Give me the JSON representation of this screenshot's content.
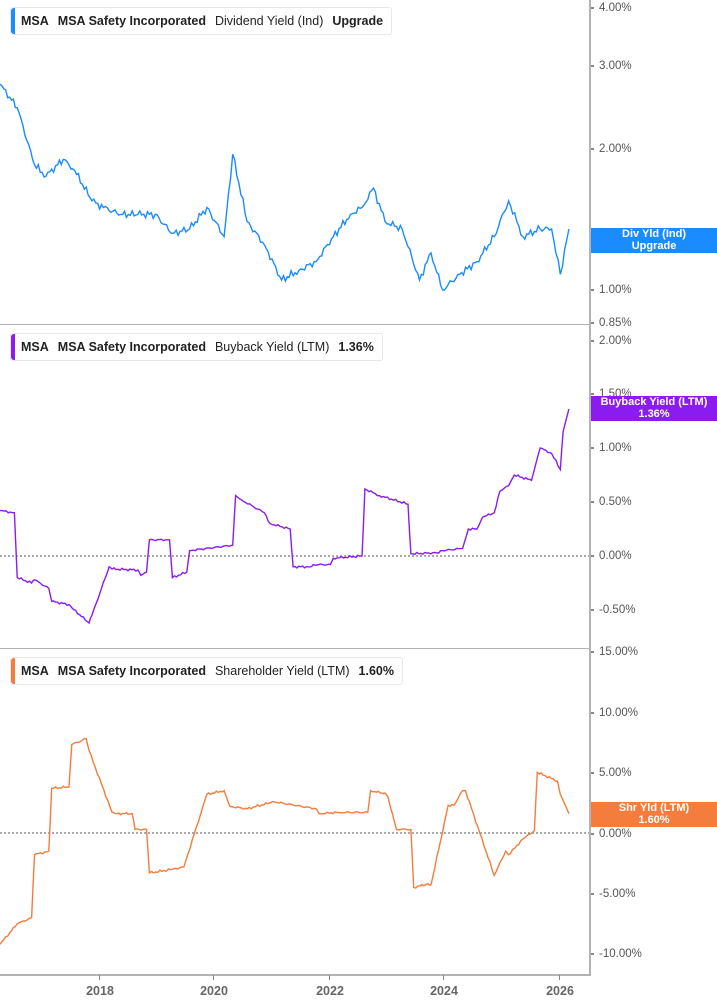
{
  "chart_data": [
    {
      "type": "line",
      "title": "MSA  MSA Safety Incorporated  Dividend Yield (Ind)",
      "legend": {
        "ticker": "MSA",
        "name": "MSA Safety Incorporated",
        "metric": "Dividend Yield (Ind)",
        "value": "Upgrade"
      },
      "color": "#1a8cff",
      "y_scale": "log",
      "ylim": [
        0.85,
        4.0
      ],
      "y_ticks": [
        "4.00%",
        "3.00%",
        "2.00%",
        "1.00%",
        "0.85%"
      ],
      "y_tick_values": [
        4.0,
        3.0,
        2.0,
        1.0,
        0.85
      ],
      "flag": {
        "line1": "Div Yld (Ind)",
        "line2": "Upgrade"
      },
      "x": [
        2016.3,
        2016.6,
        2016.9,
        2017.1,
        2017.4,
        2017.6,
        2017.9,
        2018.1,
        2018.4,
        2018.7,
        2019.0,
        2019.3,
        2019.6,
        2019.9,
        2020.2,
        2020.35,
        2020.6,
        2020.9,
        2021.2,
        2021.5,
        2021.8,
        2022.1,
        2022.4,
        2022.6,
        2022.8,
        2023.0,
        2023.3,
        2023.6,
        2023.8,
        2024.0,
        2024.3,
        2024.6,
        2024.9,
        2025.15,
        2025.4,
        2025.7,
        2025.9,
        2026.05,
        2026.2
      ],
      "values": [
        2.75,
        2.45,
        1.85,
        1.75,
        1.9,
        1.8,
        1.55,
        1.5,
        1.45,
        1.45,
        1.45,
        1.32,
        1.35,
        1.5,
        1.3,
        1.95,
        1.4,
        1.25,
        1.05,
        1.1,
        1.15,
        1.3,
        1.45,
        1.5,
        1.65,
        1.4,
        1.35,
        1.05,
        1.2,
        1.0,
        1.08,
        1.15,
        1.3,
        1.55,
        1.3,
        1.35,
        1.35,
        1.08,
        1.35
      ]
    },
    {
      "type": "line",
      "title": "MSA  MSA Safety Incorporated  Buyback Yield (LTM)",
      "legend": {
        "ticker": "MSA",
        "name": "MSA Safety Incorporated",
        "metric": "Buyback Yield (LTM)",
        "value": "1.36%"
      },
      "color": "#8a1cf0",
      "ylim": [
        -0.75,
        2.0
      ],
      "y_ticks": [
        "2.00%",
        "1.50%",
        "1.00%",
        "0.50%",
        "0.00%",
        "-0.50%"
      ],
      "y_tick_values": [
        2.0,
        1.5,
        1.0,
        0.5,
        0.0,
        -0.5
      ],
      "flag": {
        "line1": "Buyback Yield (LTM)",
        "line2": "1.36%"
      },
      "x": [
        2016.3,
        2016.55,
        2016.6,
        2016.85,
        2016.9,
        2017.15,
        2017.2,
        2017.5,
        2017.55,
        2017.85,
        2017.9,
        2018.2,
        2018.25,
        2018.7,
        2018.75,
        2018.85,
        2018.9,
        2019.25,
        2019.3,
        2019.55,
        2019.6,
        2020.35,
        2020.4,
        2020.5,
        2020.9,
        2021.0,
        2021.35,
        2021.4,
        2021.7,
        2021.75,
        2022.05,
        2022.1,
        2022.6,
        2022.65,
        2022.9,
        2023.4,
        2023.45,
        2023.9,
        2024.0,
        2024.35,
        2024.45,
        2024.6,
        2024.7,
        2024.9,
        2025.0,
        2025.15,
        2025.25,
        2025.55,
        2025.7,
        2025.9,
        2026.05,
        2026.1,
        2026.2
      ],
      "values": [
        0.42,
        0.4,
        -0.2,
        -0.25,
        -0.22,
        -0.3,
        -0.42,
        -0.45,
        -0.48,
        -0.62,
        -0.55,
        -0.1,
        -0.12,
        -0.13,
        -0.18,
        -0.15,
        0.15,
        0.15,
        -0.2,
        -0.15,
        0.05,
        0.1,
        0.56,
        0.52,
        0.4,
        0.3,
        0.25,
        -0.1,
        -0.1,
        -0.08,
        -0.08,
        -0.02,
        0.0,
        0.62,
        0.56,
        0.48,
        0.02,
        0.03,
        0.05,
        0.07,
        0.25,
        0.25,
        0.36,
        0.4,
        0.6,
        0.65,
        0.75,
        0.7,
        1.0,
        0.95,
        0.8,
        1.15,
        1.36
      ]
    },
    {
      "type": "line",
      "title": "MSA  MSA Safety Incorporated  Shareholder Yield (LTM)",
      "legend": {
        "ticker": "MSA",
        "name": "MSA Safety Incorporated",
        "metric": "Shareholder Yield (LTM)",
        "value": "1.60%"
      },
      "color": "#f47c3c",
      "ylim": [
        -11.5,
        15.0
      ],
      "y_ticks": [
        "15.00%",
        "10.00%",
        "5.00%",
        "0.00%",
        "-5.00%",
        "-10.00%"
      ],
      "y_tick_values": [
        15.0,
        10.0,
        5.0,
        0.0,
        -5.0,
        -10.0
      ],
      "flag": {
        "line1": "Shr Yld (LTM)",
        "line2": "1.60%"
      },
      "x": [
        2016.3,
        2016.6,
        2016.85,
        2016.9,
        2017.15,
        2017.2,
        2017.5,
        2017.55,
        2017.8,
        2017.85,
        2018.25,
        2018.3,
        2018.6,
        2018.65,
        2018.85,
        2018.9,
        2019.3,
        2019.5,
        2019.9,
        2020.2,
        2020.3,
        2020.6,
        2021.0,
        2021.05,
        2021.8,
        2021.85,
        2022.2,
        2022.7,
        2022.75,
        2022.95,
        2023.0,
        2023.05,
        2023.2,
        2023.45,
        2023.5,
        2023.75,
        2023.8,
        2024.1,
        2024.2,
        2024.35,
        2024.4,
        2024.9,
        2025.1,
        2025.15,
        2025.4,
        2025.6,
        2025.65,
        2026.0,
        2026.05,
        2026.2
      ],
      "values": [
        -9.2,
        -7.5,
        -7.0,
        -1.8,
        -1.5,
        3.7,
        3.8,
        7.3,
        7.8,
        6.8,
        1.7,
        1.6,
        1.6,
        0.3,
        0.3,
        -3.3,
        -3.0,
        -2.8,
        3.2,
        3.5,
        2.2,
        2.0,
        2.5,
        2.6,
        2.0,
        1.6,
        1.7,
        1.7,
        3.5,
        3.3,
        3.3,
        3.0,
        0.3,
        0.3,
        -4.5,
        -4.2,
        -4.3,
        2.3,
        2.3,
        3.5,
        3.5,
        -3.5,
        -1.5,
        -1.8,
        -0.5,
        0.2,
        5.0,
        4.3,
        3.2,
        1.6
      ]
    }
  ],
  "x_axis": {
    "ticks": [
      "2018",
      "2020",
      "2022",
      "2024",
      "2026"
    ],
    "tick_values": [
      2018,
      2020,
      2022,
      2024,
      2026
    ],
    "xlim": [
      2016.3,
      2026.55
    ]
  },
  "zero_line": {
    "style": "dotted",
    "color": "#777777"
  }
}
